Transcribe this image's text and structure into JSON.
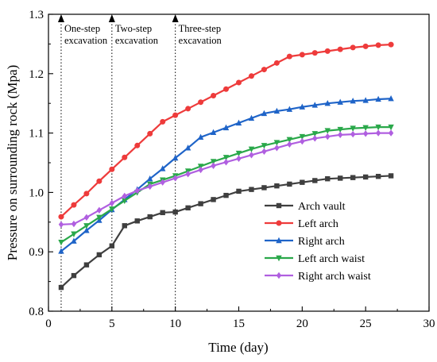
{
  "chart_data": {
    "type": "line",
    "xlabel": "Time (day)",
    "ylabel": "Pressure on surrounding rock (Mpa)",
    "xlim": [
      0,
      30
    ],
    "ylim": [
      0.8,
      1.3
    ],
    "xticks": [
      "0",
      "5",
      "10",
      "15",
      "20",
      "25",
      "30"
    ],
    "yticks": [
      "0.8",
      "0.9",
      "1.0",
      "1.1",
      "1.2",
      "1.3"
    ],
    "grid": false,
    "legend_position": "bottom-right",
    "phases": [
      {
        "x": 1,
        "line1": "One-step",
        "line2": "excavation"
      },
      {
        "x": 5,
        "line1": "Two-step",
        "line2": "excavation"
      },
      {
        "x": 10,
        "line1": "Three-step",
        "line2": "excavation"
      }
    ],
    "x": [
      1,
      2,
      3,
      4,
      5,
      6,
      7,
      8,
      9,
      10,
      11,
      12,
      13,
      14,
      15,
      16,
      17,
      18,
      19,
      20,
      21,
      22,
      23,
      24,
      25,
      26,
      27
    ],
    "series": [
      {
        "name": "Arch vault",
        "color": "#3f3f3f",
        "marker": "square",
        "values": [
          0.84,
          0.86,
          0.878,
          0.895,
          0.91,
          0.944,
          0.952,
          0.959,
          0.966,
          0.967,
          0.974,
          0.981,
          0.988,
          0.995,
          1.002,
          1.005,
          1.008,
          1.011,
          1.014,
          1.017,
          1.02,
          1.023,
          1.024,
          1.025,
          1.026,
          1.027,
          1.028
        ]
      },
      {
        "name": "Left arch",
        "color": "#ee3b3b",
        "marker": "circle",
        "values": [
          0.959,
          0.979,
          0.998,
          1.019,
          1.039,
          1.059,
          1.079,
          1.099,
          1.119,
          1.13,
          1.141,
          1.152,
          1.163,
          1.174,
          1.185,
          1.196,
          1.207,
          1.218,
          1.229,
          1.232,
          1.235,
          1.238,
          1.241,
          1.244,
          1.246,
          1.248,
          1.249
        ]
      },
      {
        "name": "Right arch",
        "color": "#1f64c8",
        "marker": "triangle-up",
        "values": [
          0.901,
          0.918,
          0.936,
          0.953,
          0.971,
          0.988,
          1.005,
          1.023,
          1.04,
          1.058,
          1.075,
          1.093,
          1.101,
          1.109,
          1.117,
          1.125,
          1.133,
          1.137,
          1.14,
          1.144,
          1.147,
          1.15,
          1.152,
          1.154,
          1.155,
          1.157,
          1.158
        ]
      },
      {
        "name": "Left arch waist",
        "color": "#2aa84a",
        "marker": "triangle-down",
        "values": [
          0.916,
          0.93,
          0.944,
          0.958,
          0.972,
          0.986,
          1.0,
          1.014,
          1.021,
          1.028,
          1.036,
          1.044,
          1.052,
          1.059,
          1.066,
          1.073,
          1.079,
          1.084,
          1.089,
          1.094,
          1.099,
          1.104,
          1.106,
          1.108,
          1.109,
          1.11,
          1.11
        ]
      },
      {
        "name": "Right arch waist",
        "color": "#b05fe0",
        "marker": "diamond",
        "values": [
          0.946,
          0.947,
          0.958,
          0.97,
          0.982,
          0.994,
          1.003,
          1.01,
          1.017,
          1.024,
          1.031,
          1.038,
          1.045,
          1.051,
          1.057,
          1.063,
          1.069,
          1.075,
          1.081,
          1.086,
          1.091,
          1.094,
          1.097,
          1.098,
          1.099,
          1.1,
          1.1
        ]
      }
    ]
  }
}
